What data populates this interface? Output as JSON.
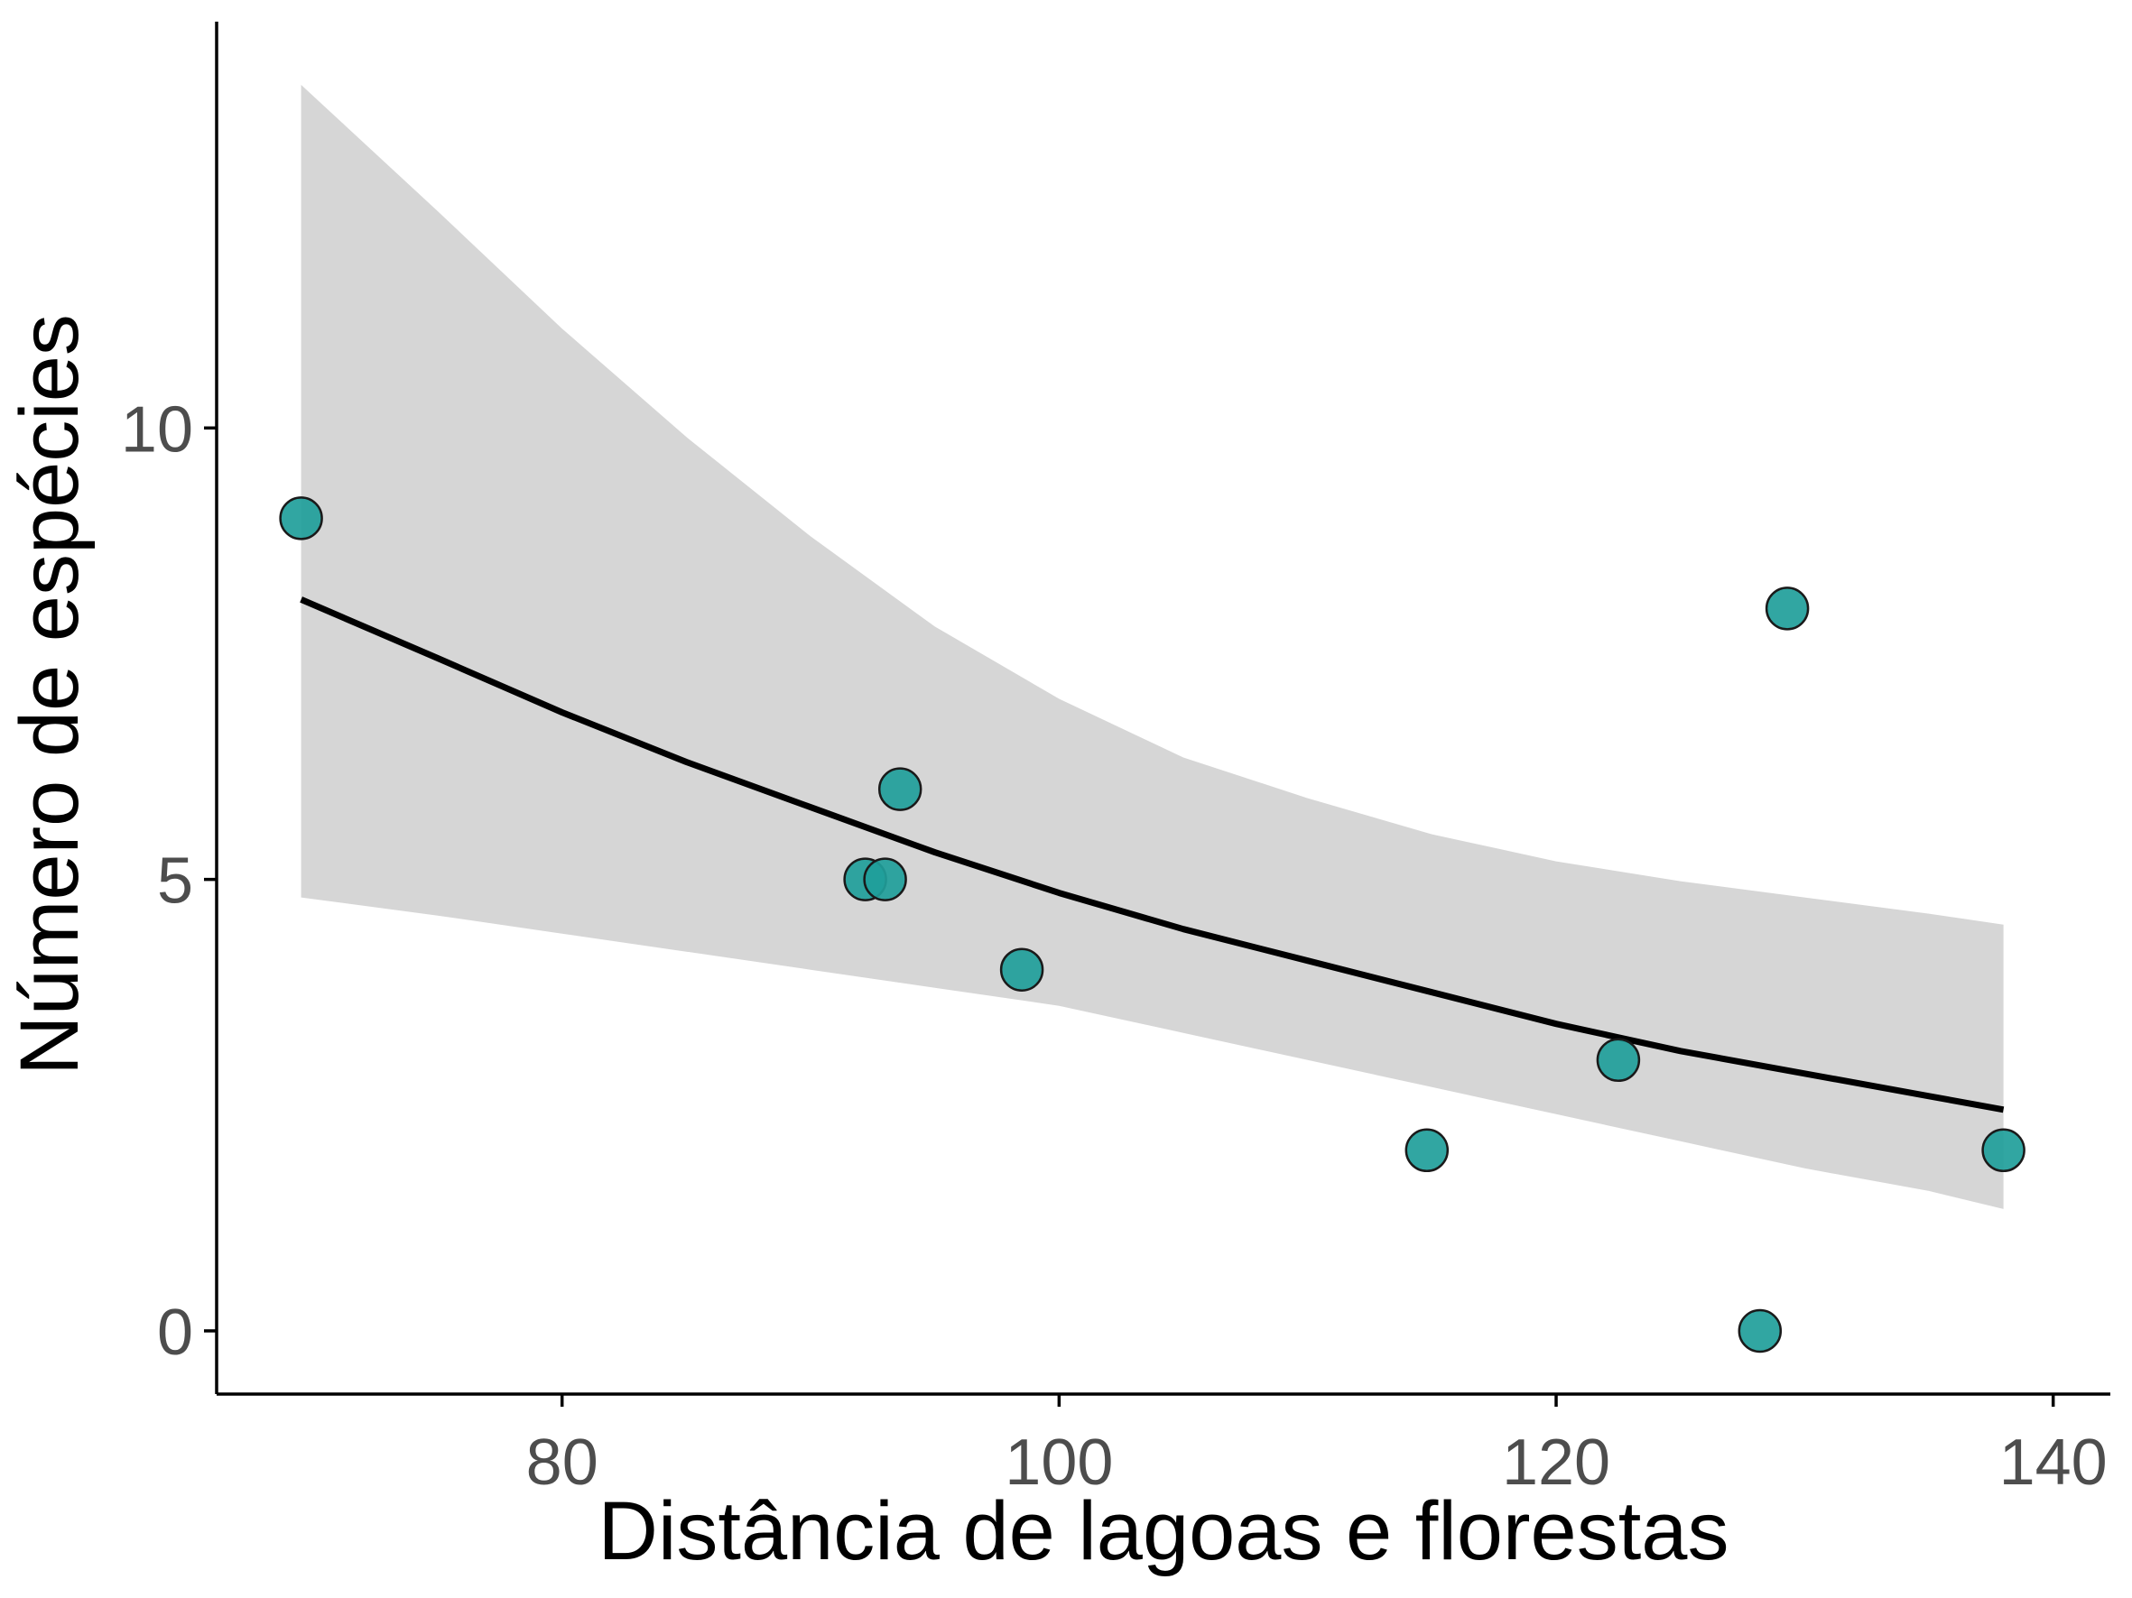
{
  "chart_data": {
    "type": "scatter",
    "xlabel": "Distância de lagoas e florestas",
    "ylabel": "Número de espécies",
    "xlim": [
      66.1,
      142.3
    ],
    "ylim": [
      -0.7,
      14.5
    ],
    "x_ticks": [
      80,
      100,
      120,
      140
    ],
    "y_ticks": [
      0,
      5,
      10
    ],
    "grid": false,
    "legend": "none",
    "points": {
      "x": [
        69.5,
        92.2,
        93.0,
        93.6,
        98.5,
        114.8,
        122.5,
        128.2,
        129.3,
        138.0
      ],
      "y": [
        9,
        5,
        5,
        6,
        4,
        2,
        3,
        0,
        8,
        2
      ]
    },
    "fit": {
      "x": [
        69.5,
        75,
        80,
        85,
        90,
        95,
        100,
        105,
        110,
        115,
        120,
        125,
        130,
        135,
        138
      ],
      "y": [
        8.1,
        7.45,
        6.85,
        6.3,
        5.8,
        5.3,
        4.85,
        4.45,
        4.1,
        3.75,
        3.4,
        3.1,
        2.85,
        2.6,
        2.45
      ],
      "lower": [
        4.8,
        4.6,
        4.4,
        4.2,
        4.0,
        3.8,
        3.6,
        3.3,
        3.0,
        2.7,
        2.4,
        2.1,
        1.8,
        1.55,
        1.35
      ],
      "upper": [
        13.8,
        12.4,
        11.1,
        9.9,
        8.8,
        7.8,
        7.0,
        6.35,
        5.9,
        5.5,
        5.2,
        4.98,
        4.8,
        4.62,
        4.5
      ]
    },
    "colors": {
      "point_fill": "#1f9e9a",
      "point_stroke": "#1a1a1a",
      "line": "#000000",
      "ribbon": "#d6d6d6",
      "tick_label": "#4d4d4d"
    }
  }
}
